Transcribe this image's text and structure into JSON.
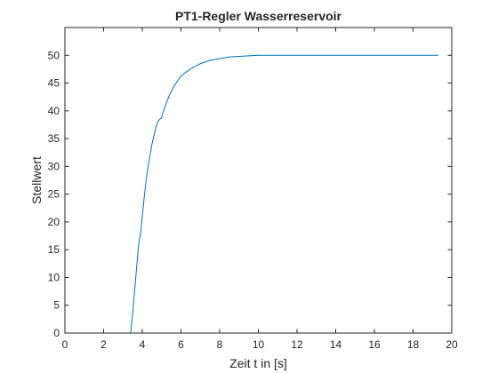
{
  "chart_data": {
    "type": "line",
    "title": "PT1-Regler Wasserreservoir",
    "xlabel": "Zeit t in [s]",
    "ylabel": "Stellwert",
    "xlim": [
      0,
      20
    ],
    "ylim": [
      0,
      55
    ],
    "xticks": [
      0,
      2,
      4,
      6,
      8,
      10,
      12,
      14,
      16,
      18,
      20
    ],
    "yticks": [
      0,
      5,
      10,
      15,
      20,
      25,
      30,
      35,
      40,
      45,
      50
    ],
    "grid": false,
    "series": [
      {
        "color": "#0072bd",
        "x": [
          0,
          3.4,
          3.5,
          3.6,
          3.7,
          3.8,
          3.85,
          3.9,
          4.0,
          4.1,
          4.2,
          4.3,
          4.4,
          4.5,
          4.6,
          4.7,
          4.8,
          4.9,
          5.0,
          5.05,
          5.2,
          5.4,
          5.6,
          5.8,
          6.0,
          6.2,
          6.4,
          6.6,
          6.8,
          7.0,
          7.5,
          8.0,
          8.5,
          9.0,
          9.5,
          10.0,
          11.0,
          12.0,
          14.0,
          16.0,
          18.0,
          19.3
        ],
        "y": [
          0,
          0,
          3.5,
          7.5,
          11.5,
          15.5,
          17.0,
          17.5,
          21.0,
          24.5,
          27.5,
          30.0,
          32.0,
          34.0,
          35.5,
          37.0,
          38.0,
          38.5,
          38.7,
          39.5,
          41.0,
          42.8,
          44.2,
          45.3,
          46.3,
          46.8,
          47.3,
          47.8,
          48.1,
          48.5,
          49.1,
          49.4,
          49.7,
          49.8,
          49.9,
          50.0,
          50.0,
          50.0,
          50.0,
          50.0,
          50.0,
          50.0
        ]
      }
    ]
  }
}
